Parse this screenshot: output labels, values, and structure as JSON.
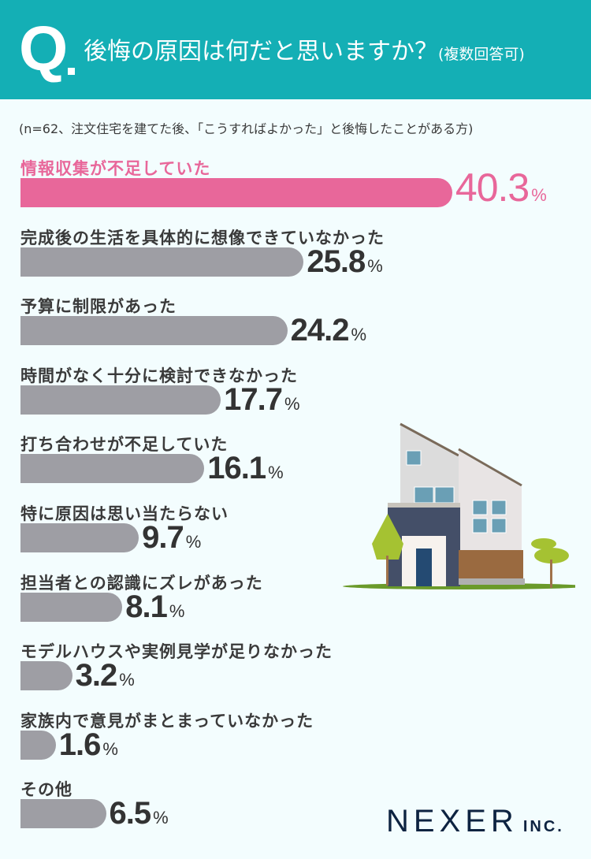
{
  "header": {
    "q": "Q",
    "title": "後悔の原因は何だと思いますか？",
    "title_note": "(複数回答可)",
    "bg": "#14afb5"
  },
  "note": "(n=62、注文住宅を建てた後、「こうすればよかった」と後悔したことがある方)",
  "chart_data": {
    "type": "bar",
    "orientation": "horizontal",
    "unit": "%",
    "highlight_color": "#e8679a",
    "bar_color": "#9e9ea4",
    "categories": [
      "情報収集が不足していた",
      "完成後の生活を具体的に想像できていなかった",
      "予算に制限があった",
      "時間がなく十分に検討できなかった",
      "打ち合わせが不足していた",
      "特に原因は思い当たらない",
      "担当者との認識にズレがあった",
      "モデルハウスや実例見学が足りなかった",
      "家族内で意見がまとまっていなかった",
      "その他"
    ],
    "values": [
      40.3,
      25.8,
      24.2,
      17.7,
      16.1,
      9.7,
      8.1,
      3.2,
      1.6,
      6.5
    ],
    "labels": [
      "40.3",
      "25.8",
      "24.2",
      "17.7",
      "16.1",
      "9.7",
      "8.1",
      "3.2",
      "1.6",
      "6.5"
    ],
    "highlighted": [
      0
    ]
  },
  "logo": {
    "main": "NEXER",
    "sub": "INC."
  }
}
